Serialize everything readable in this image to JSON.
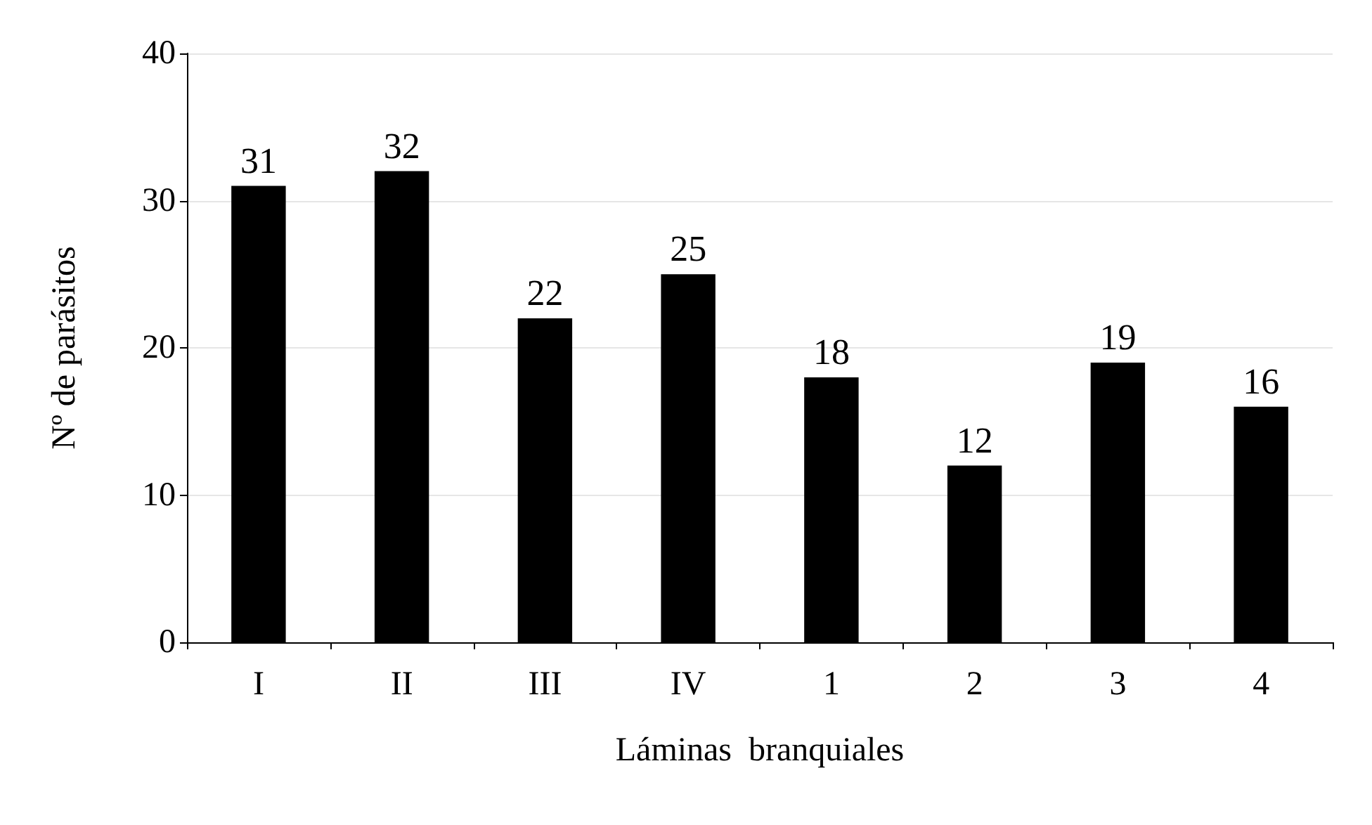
{
  "chart_data": {
    "type": "bar",
    "xlabel": "Láminas  branquiales",
    "ylabel": "Nº de parásitos",
    "categories": [
      "I",
      "II",
      "III",
      "IV",
      "1",
      "2",
      "3",
      "4"
    ],
    "values": [
      31,
      32,
      22,
      25,
      18,
      12,
      19,
      16
    ],
    "color": "#000000",
    "ylim": [
      0,
      40
    ],
    "yticks": [
      0,
      10,
      20,
      30,
      40
    ],
    "grid": "y",
    "data_labels": true
  }
}
